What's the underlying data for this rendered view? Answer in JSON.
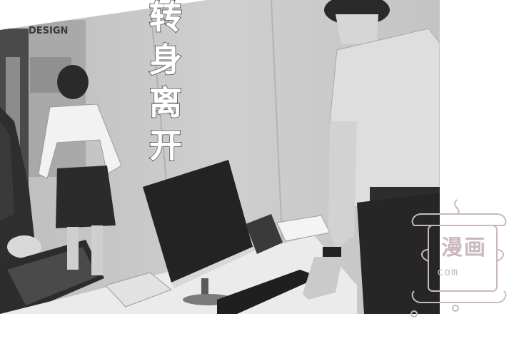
{
  "panel": {
    "caption_chars": [
      "转",
      "身",
      "离",
      "开"
    ],
    "office_sign": "DESIGN"
  },
  "watermark": {
    "line1": "漫画",
    "line2": "com"
  }
}
